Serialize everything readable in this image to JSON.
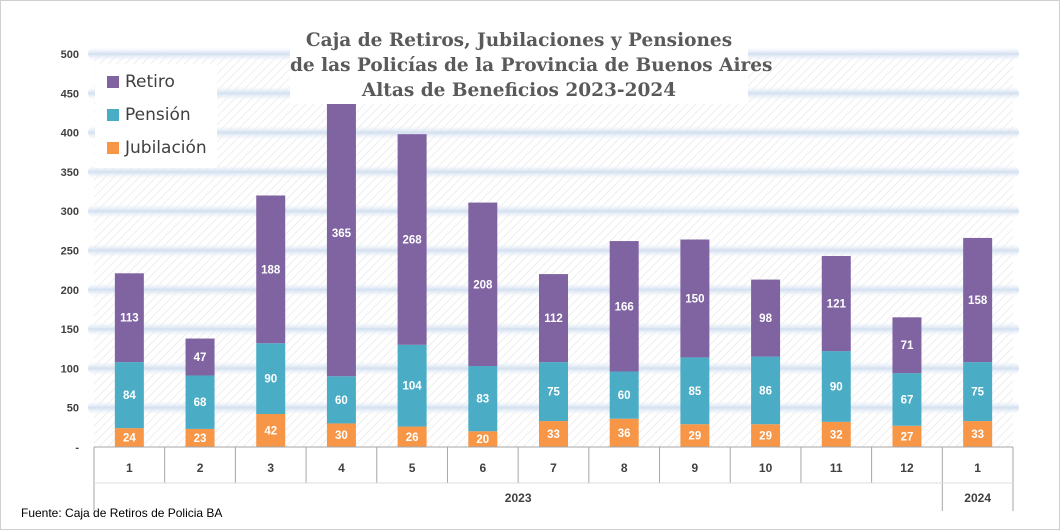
{
  "title_lines": [
    "Caja de Retiros, Jubilaciones y Pensiones",
    "de las Policías de la Provincia de Buenos Aires",
    "Altas de Beneficios 2023-2024"
  ],
  "source": "Fuente: Caja de Retiros de Policia BA",
  "colors": {
    "retiro": "#8064a2",
    "pension": "#4bacc6",
    "jubilacion": "#f79646",
    "gridline": "#d6e3f2",
    "axis": "#a6a6a6"
  },
  "chart_data": {
    "type": "bar",
    "stacked": true,
    "title": "Caja de Retiros, Jubilaciones y Pensiones de las Policías de la Provincia de Buenos Aires Altas de Beneficios 2023-2024",
    "categories": [
      "1",
      "2",
      "3",
      "4",
      "5",
      "6",
      "7",
      "8",
      "9",
      "10",
      "11",
      "12",
      "1"
    ],
    "year_groups": [
      {
        "label": "2023",
        "count": 12
      },
      {
        "label": "2024",
        "count": 1
      }
    ],
    "series": [
      {
        "name": "Jubilación",
        "color": "#f79646",
        "values": [
          24,
          23,
          42,
          30,
          26,
          20,
          33,
          36,
          29,
          29,
          32,
          27,
          33
        ]
      },
      {
        "name": "Pensión",
        "color": "#4bacc6",
        "values": [
          84,
          68,
          90,
          60,
          104,
          83,
          75,
          60,
          85,
          86,
          90,
          67,
          75
        ]
      },
      {
        "name": "Retiro",
        "color": "#8064a2",
        "values": [
          113,
          47,
          188,
          365,
          268,
          208,
          112,
          166,
          150,
          98,
          121,
          71,
          158
        ]
      }
    ],
    "legend_order": [
      "Retiro",
      "Pensión",
      "Jubilación"
    ],
    "ylim": [
      0,
      500
    ],
    "yticks": [
      "-",
      "50",
      "100",
      "150",
      "200",
      "250",
      "300",
      "350",
      "400",
      "450",
      "500"
    ],
    "legend_position": "top-left",
    "grid": true
  }
}
